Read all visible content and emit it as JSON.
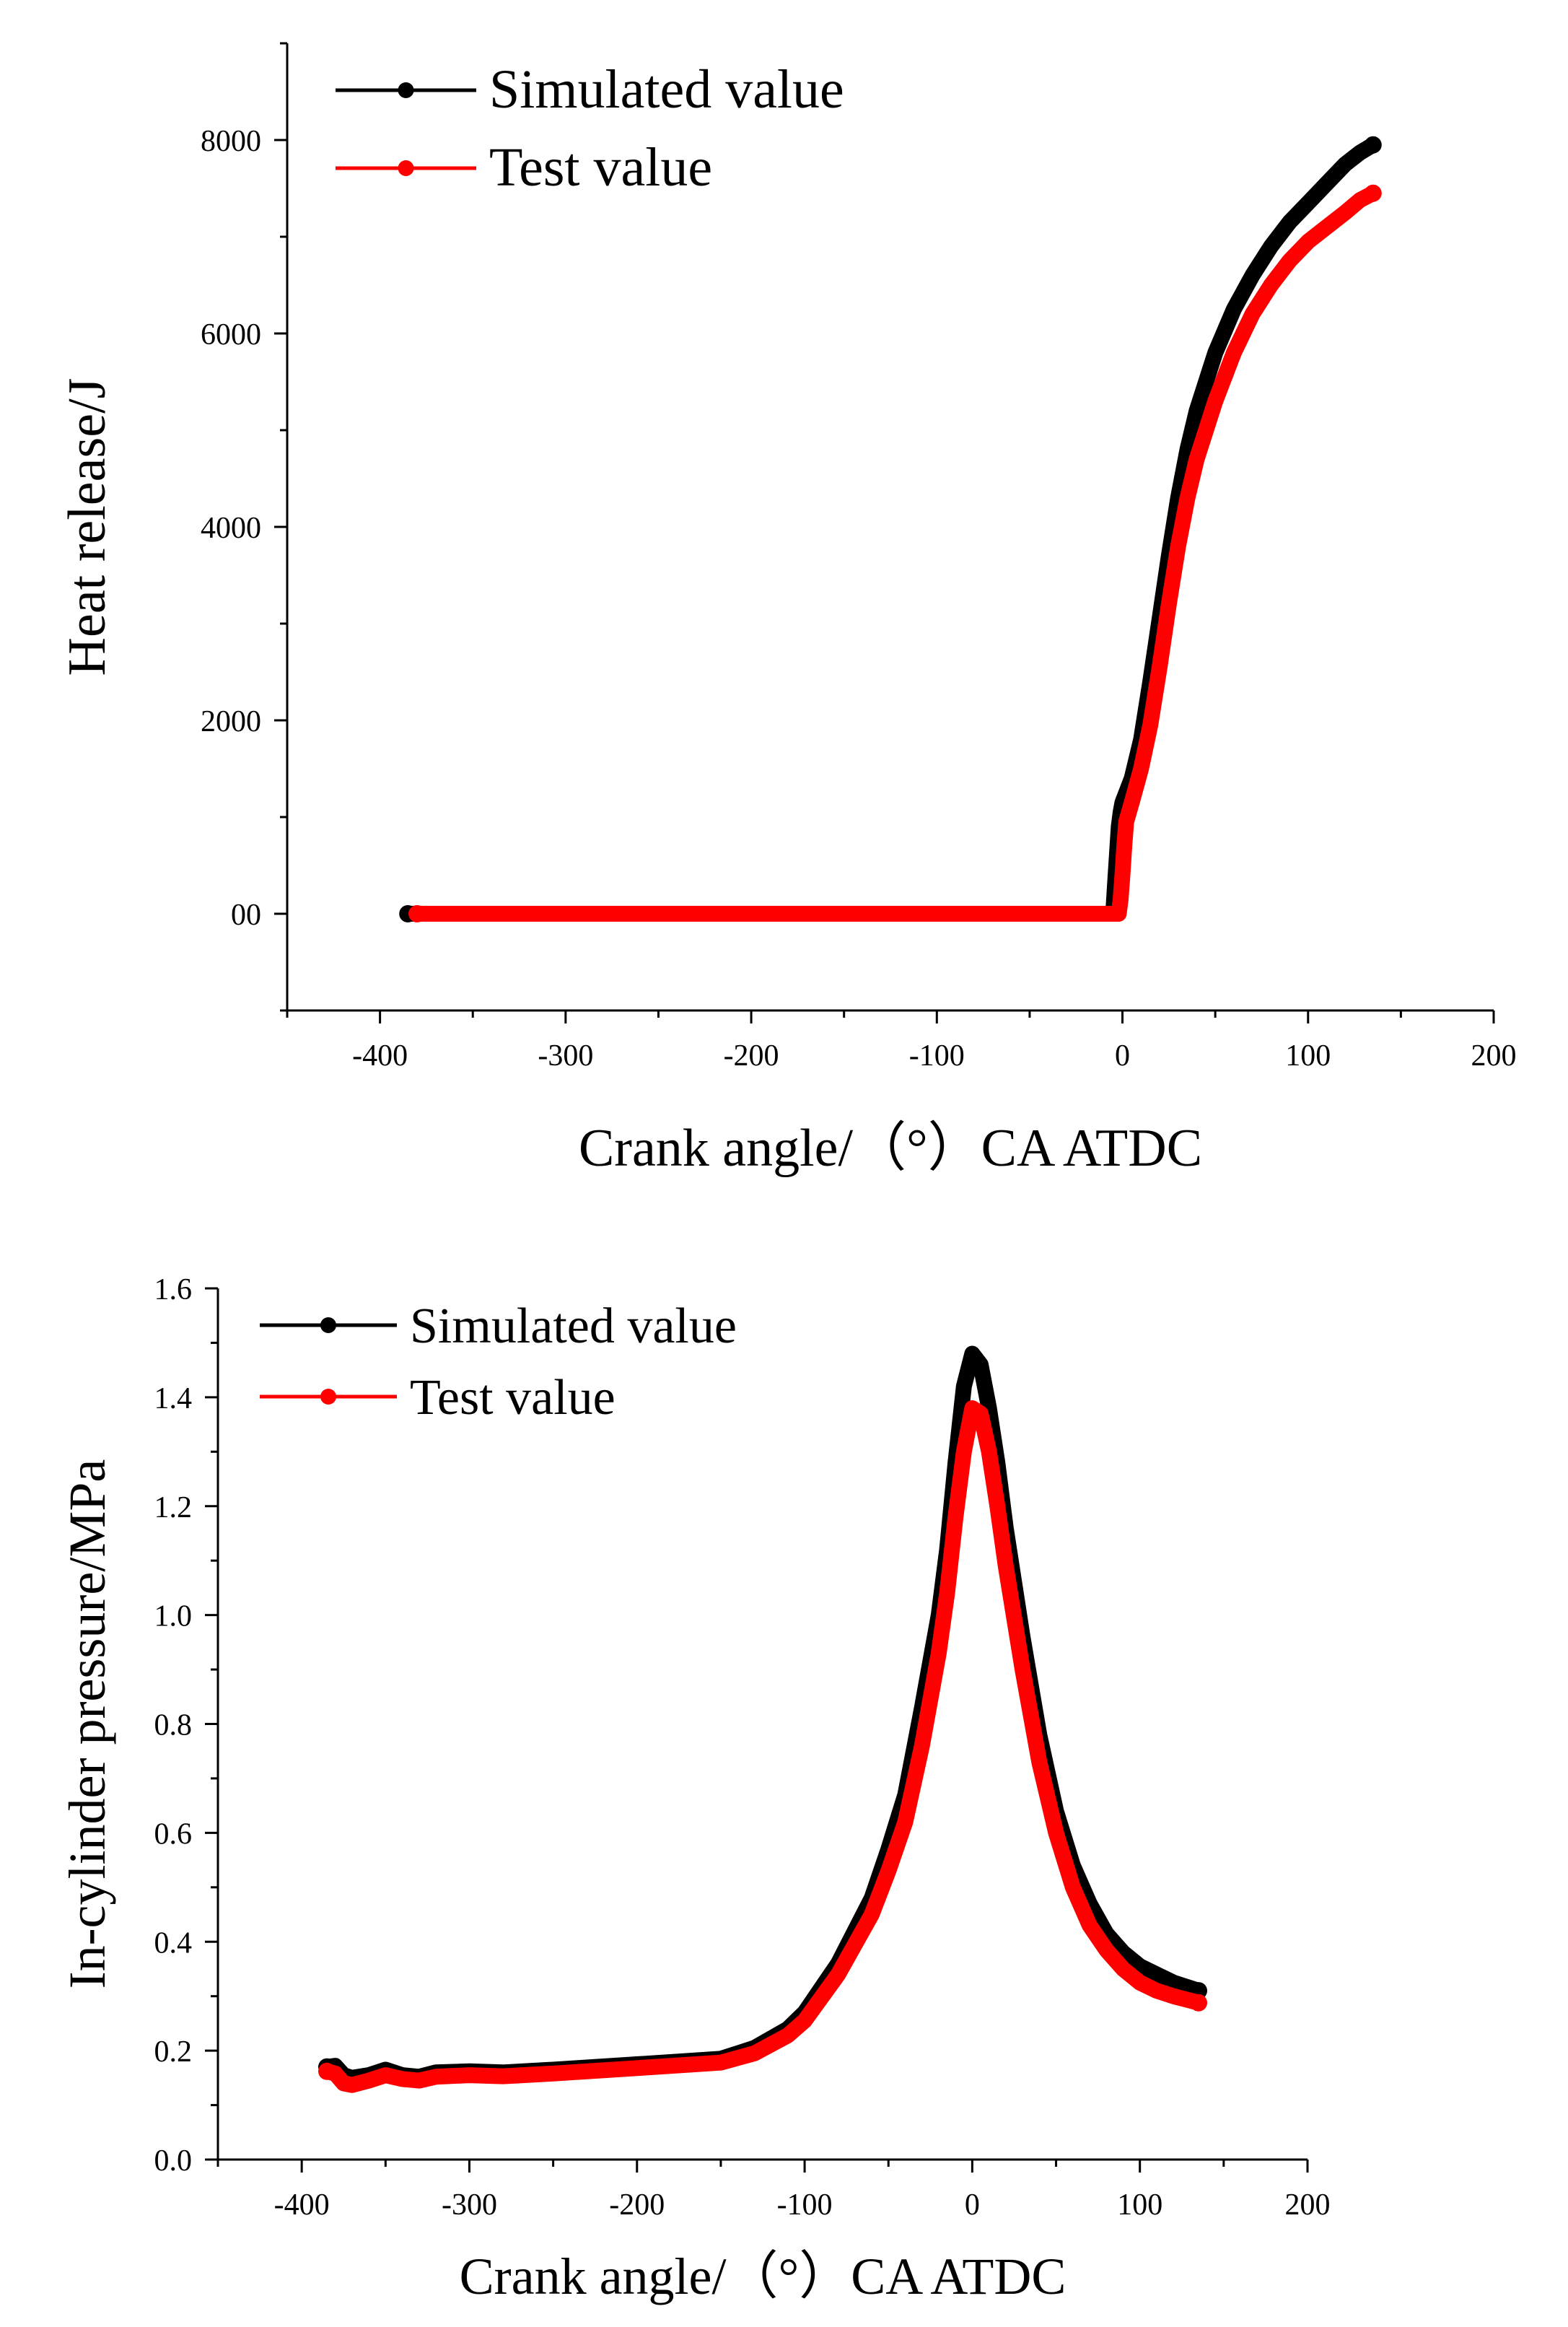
{
  "colors": {
    "simulated": "#000000",
    "test": "#ff0000",
    "axis": "#000000"
  },
  "chart_data": [
    {
      "type": "line",
      "title": "",
      "xlabel": "Crank angle/（°）CA ATDC",
      "ylabel": "Heat release/J",
      "xlim": [
        -450,
        200
      ],
      "ylim": [
        -1000,
        9000
      ],
      "xticks": [
        -400,
        -300,
        -200,
        -100,
        0,
        100,
        200
      ],
      "xtick_labels": [
        "-400",
        "-300",
        "-200",
        "-100",
        "0",
        "100",
        "200"
      ],
      "yticks": [
        0,
        2000,
        4000,
        6000,
        8000
      ],
      "ytick_labels": [
        "00",
        "2000",
        "4000",
        "6000",
        "8000"
      ],
      "legend": "top-left",
      "grid": false,
      "series": [
        {
          "name": "Simulated value",
          "color": "#000000",
          "x": [
            -385,
            -300,
            -200,
            -100,
            -5,
            -4,
            -3,
            -2,
            -1,
            0,
            5,
            10,
            15,
            20,
            25,
            30,
            35,
            40,
            50,
            60,
            70,
            80,
            90,
            100,
            110,
            120,
            128,
            135
          ],
          "y": [
            0,
            0,
            0,
            0,
            0,
            300,
            600,
            900,
            1050,
            1150,
            1400,
            1800,
            2400,
            3050,
            3700,
            4300,
            4800,
            5200,
            5800,
            6250,
            6600,
            6900,
            7150,
            7350,
            7550,
            7750,
            7870,
            7950
          ]
        },
        {
          "name": "Test value",
          "color": "#ff0000",
          "x": [
            -380,
            -300,
            -200,
            -100,
            -2,
            -1,
            0,
            1,
            2,
            5,
            10,
            15,
            20,
            25,
            30,
            35,
            40,
            50,
            60,
            70,
            80,
            90,
            100,
            110,
            120,
            128,
            135
          ],
          "y": [
            0,
            0,
            0,
            0,
            0,
            150,
            400,
            700,
            950,
            1150,
            1500,
            1950,
            2550,
            3200,
            3800,
            4300,
            4700,
            5300,
            5800,
            6200,
            6500,
            6750,
            6950,
            7100,
            7250,
            7380,
            7450
          ]
        }
      ]
    },
    {
      "type": "line",
      "title": "",
      "xlabel": "Crank angle/（°）CA ATDC",
      "ylabel": "In-cylinder pressure/MPa",
      "xlim": [
        -450,
        200
      ],
      "ylim": [
        0.0,
        1.6
      ],
      "xticks": [
        -400,
        -300,
        -200,
        -100,
        0,
        100,
        200
      ],
      "xtick_labels": [
        "-400",
        "-300",
        "-200",
        "-100",
        "0",
        "100",
        "200"
      ],
      "yticks": [
        0.0,
        0.2,
        0.4,
        0.6,
        0.8,
        1.0,
        1.2,
        1.4,
        1.6
      ],
      "ytick_labels": [
        "0.0",
        "0.2",
        "0.4",
        "0.6",
        "0.8",
        "1.0",
        "1.2",
        "1.4",
        "1.6"
      ],
      "legend": "top-left",
      "grid": false,
      "series": [
        {
          "name": "Simulated value",
          "color": "#000000",
          "x": [
            -385,
            -380,
            -375,
            -370,
            -360,
            -350,
            -340,
            -330,
            -320,
            -300,
            -280,
            -250,
            -200,
            -150,
            -130,
            -110,
            -100,
            -80,
            -60,
            -50,
            -40,
            -30,
            -20,
            -15,
            -10,
            -5,
            0,
            5,
            10,
            15,
            20,
            30,
            40,
            50,
            60,
            70,
            80,
            90,
            100,
            110,
            120,
            135
          ],
          "y": [
            0.17,
            0.172,
            0.155,
            0.15,
            0.155,
            0.165,
            0.155,
            0.152,
            0.16,
            0.162,
            0.16,
            0.165,
            0.175,
            0.185,
            0.205,
            0.24,
            0.27,
            0.36,
            0.48,
            0.57,
            0.67,
            0.83,
            1.0,
            1.12,
            1.28,
            1.42,
            1.48,
            1.46,
            1.38,
            1.28,
            1.16,
            0.96,
            0.78,
            0.64,
            0.54,
            0.47,
            0.415,
            0.38,
            0.355,
            0.34,
            0.325,
            0.31
          ]
        },
        {
          "name": "Test value",
          "color": "#ff0000",
          "x": [
            -385,
            -380,
            -375,
            -370,
            -360,
            -350,
            -340,
            -330,
            -320,
            -300,
            -280,
            -250,
            -200,
            -150,
            -130,
            -110,
            -100,
            -80,
            -60,
            -50,
            -40,
            -30,
            -20,
            -15,
            -10,
            -5,
            0,
            5,
            10,
            15,
            20,
            30,
            40,
            50,
            60,
            70,
            80,
            90,
            100,
            110,
            120,
            135
          ],
          "y": [
            0.162,
            0.158,
            0.14,
            0.137,
            0.145,
            0.155,
            0.148,
            0.145,
            0.152,
            0.155,
            0.153,
            0.158,
            0.168,
            0.178,
            0.195,
            0.228,
            0.255,
            0.34,
            0.45,
            0.53,
            0.62,
            0.76,
            0.93,
            1.04,
            1.18,
            1.3,
            1.38,
            1.37,
            1.3,
            1.2,
            1.09,
            0.9,
            0.73,
            0.6,
            0.5,
            0.43,
            0.385,
            0.35,
            0.325,
            0.31,
            0.3,
            0.288
          ]
        }
      ]
    }
  ]
}
